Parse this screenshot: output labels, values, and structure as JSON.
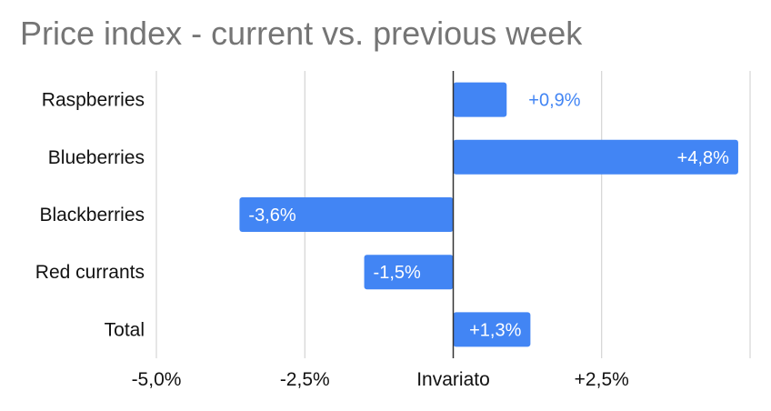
{
  "chart_data": {
    "type": "bar",
    "orientation": "horizontal",
    "title": "Price index - current vs. previous week",
    "categories": [
      "Raspberries",
      "Blueberries",
      "Blackberries",
      "Red currants",
      "Total"
    ],
    "values": [
      0.9,
      4.8,
      -3.6,
      -1.5,
      1.3
    ],
    "data_labels": [
      "+0,9%",
      "+4,8%",
      "-3,6%",
      "-1,5%",
      "+1,3%"
    ],
    "x_ticks": [
      {
        "value": -5.0,
        "label": "-5,0%"
      },
      {
        "value": -2.5,
        "label": "-2,5%"
      },
      {
        "value": 0,
        "label": "Invariato"
      },
      {
        "value": 2.5,
        "label": "+2,5%"
      }
    ],
    "xlim": [
      -5.0,
      5.0
    ],
    "grid": true,
    "legend": "none",
    "colors": {
      "bar": "#4285f4",
      "label_outside": "#4285f4",
      "label_inside": "#ffffff",
      "gridline": "#cccccc",
      "zero_line": "#333333",
      "title": "#757575"
    }
  }
}
